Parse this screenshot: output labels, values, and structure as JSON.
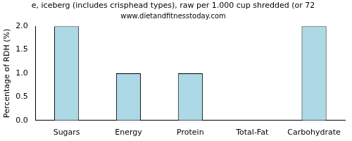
{
  "chart_data": {
    "type": "bar",
    "title": "e, iceberg (includes crisphead types), raw per 1.000 cup shredded (or 72",
    "subtitle": "www.dietandfitnesstoday.com",
    "y_label": "Percentage of RDH (%)",
    "categories": [
      "Sugars",
      "Energy",
      "Protein",
      "Total-Fat",
      "Carbohydrate"
    ],
    "values": [
      2,
      1,
      1,
      0,
      2
    ],
    "color": "#add8e6",
    "ylim": [
      0,
      2
    ],
    "yticks": [
      {
        "value": 0,
        "label": "0.0"
      },
      0.5,
      {
        "value": 1,
        "label": "1.0"
      },
      1.5,
      {
        "value": 2,
        "label": "2.0"
      }
    ],
    "grid": false
  }
}
